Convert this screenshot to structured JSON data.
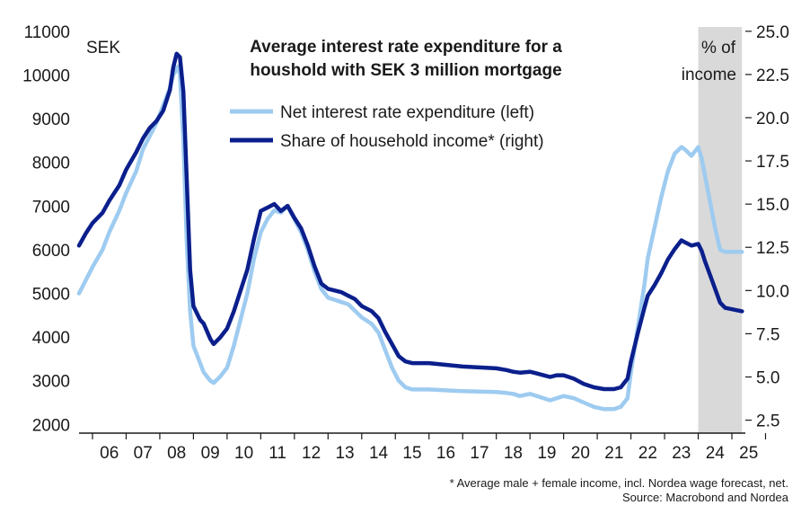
{
  "chart_data": {
    "type": "line",
    "title_lines": [
      "Average interest rate expenditure for a",
      "houshold with SEK 3 million mortgage"
    ],
    "left_unit": "SEK",
    "right_unit_lines": [
      "% of",
      "income"
    ],
    "x_ticks": [
      "06",
      "07",
      "08",
      "09",
      "10",
      "11",
      "12",
      "13",
      "14",
      "15",
      "16",
      "17",
      "18",
      "19",
      "20",
      "21",
      "22",
      "23",
      "24",
      "25"
    ],
    "x_range": [
      2005.6,
      2025.4
    ],
    "left_axis": {
      "range": [
        1800,
        11100
      ],
      "ticks": [
        "2000",
        "3000",
        "4000",
        "5000",
        "6000",
        "7000",
        "8000",
        "9000",
        "10000",
        "11000"
      ]
    },
    "right_axis": {
      "range": [
        1.75,
        25.25
      ],
      "ticks": [
        "2.5",
        "5.0",
        "7.5",
        "10.0",
        "12.5",
        "15.0",
        "17.5",
        "20.0",
        "22.5",
        "25.0"
      ]
    },
    "forecast_shade": {
      "from": 2024.0,
      "to": 2025.3,
      "color": "#d9d9d9"
    },
    "grid": false,
    "legend_position": "top-center",
    "series": [
      {
        "name": "Net interest rate expenditure (left)",
        "axis": "left",
        "color": "#9ecbf0",
        "points": [
          [
            2005.6,
            5000
          ],
          [
            2005.8,
            5300
          ],
          [
            2006.0,
            5600
          ],
          [
            2006.3,
            6000
          ],
          [
            2006.5,
            6400
          ],
          [
            2006.8,
            6900
          ],
          [
            2007.0,
            7300
          ],
          [
            2007.3,
            7800
          ],
          [
            2007.5,
            8300
          ],
          [
            2007.7,
            8600
          ],
          [
            2007.9,
            8900
          ],
          [
            2008.1,
            9300
          ],
          [
            2008.3,
            9700
          ],
          [
            2008.4,
            10000
          ],
          [
            2008.55,
            10200
          ],
          [
            2008.6,
            10000
          ],
          [
            2008.7,
            8500
          ],
          [
            2008.8,
            6200
          ],
          [
            2008.9,
            4600
          ],
          [
            2009.0,
            3800
          ],
          [
            2009.2,
            3400
          ],
          [
            2009.3,
            3200
          ],
          [
            2009.5,
            3000
          ],
          [
            2009.6,
            2950
          ],
          [
            2009.8,
            3100
          ],
          [
            2010.0,
            3300
          ],
          [
            2010.2,
            3800
          ],
          [
            2010.4,
            4400
          ],
          [
            2010.6,
            5000
          ],
          [
            2010.8,
            5800
          ],
          [
            2011.0,
            6400
          ],
          [
            2011.2,
            6700
          ],
          [
            2011.4,
            6900
          ],
          [
            2011.6,
            6850
          ],
          [
            2011.8,
            7000
          ],
          [
            2012.0,
            6700
          ],
          [
            2012.2,
            6400
          ],
          [
            2012.4,
            6000
          ],
          [
            2012.6,
            5500
          ],
          [
            2012.8,
            5100
          ],
          [
            2013.0,
            4900
          ],
          [
            2013.2,
            4850
          ],
          [
            2013.4,
            4800
          ],
          [
            2013.6,
            4750
          ],
          [
            2013.8,
            4600
          ],
          [
            2014.0,
            4450
          ],
          [
            2014.3,
            4300
          ],
          [
            2014.5,
            4100
          ],
          [
            2014.7,
            3700
          ],
          [
            2014.9,
            3300
          ],
          [
            2015.1,
            3000
          ],
          [
            2015.3,
            2850
          ],
          [
            2015.5,
            2800
          ],
          [
            2016.0,
            2800
          ],
          [
            2016.5,
            2780
          ],
          [
            2017.0,
            2760
          ],
          [
            2017.5,
            2750
          ],
          [
            2018.0,
            2740
          ],
          [
            2018.3,
            2720
          ],
          [
            2018.5,
            2700
          ],
          [
            2018.7,
            2650
          ],
          [
            2019.0,
            2700
          ],
          [
            2019.2,
            2650
          ],
          [
            2019.4,
            2600
          ],
          [
            2019.6,
            2550
          ],
          [
            2019.8,
            2600
          ],
          [
            2020.0,
            2650
          ],
          [
            2020.3,
            2600
          ],
          [
            2020.6,
            2500
          ],
          [
            2020.9,
            2400
          ],
          [
            2021.2,
            2350
          ],
          [
            2021.5,
            2350
          ],
          [
            2021.7,
            2400
          ],
          [
            2021.9,
            2600
          ],
          [
            2022.0,
            3200
          ],
          [
            2022.2,
            4200
          ],
          [
            2022.4,
            5200
          ],
          [
            2022.5,
            5800
          ],
          [
            2022.7,
            6500
          ],
          [
            2022.9,
            7200
          ],
          [
            2023.1,
            7800
          ],
          [
            2023.3,
            8200
          ],
          [
            2023.5,
            8350
          ],
          [
            2023.6,
            8300
          ],
          [
            2023.8,
            8150
          ],
          [
            2024.0,
            8350
          ],
          [
            2024.1,
            8100
          ],
          [
            2024.2,
            7700
          ],
          [
            2024.35,
            7100
          ],
          [
            2024.5,
            6500
          ],
          [
            2024.65,
            6000
          ],
          [
            2024.8,
            5950
          ],
          [
            2025.3,
            5950
          ]
        ]
      },
      {
        "name": "Share of household income* (right)",
        "axis": "right",
        "color": "#0b1f8c",
        "points": [
          [
            2005.6,
            12.6
          ],
          [
            2005.8,
            13.3
          ],
          [
            2006.0,
            13.9
          ],
          [
            2006.3,
            14.5
          ],
          [
            2006.5,
            15.2
          ],
          [
            2006.8,
            16.1
          ],
          [
            2007.0,
            17.0
          ],
          [
            2007.3,
            18.0
          ],
          [
            2007.5,
            18.8
          ],
          [
            2007.7,
            19.4
          ],
          [
            2007.9,
            19.8
          ],
          [
            2008.1,
            20.4
          ],
          [
            2008.3,
            21.6
          ],
          [
            2008.4,
            22.9
          ],
          [
            2008.5,
            23.7
          ],
          [
            2008.6,
            23.5
          ],
          [
            2008.7,
            21.5
          ],
          [
            2008.8,
            16.5
          ],
          [
            2008.9,
            11.2
          ],
          [
            2009.0,
            9.1
          ],
          [
            2009.2,
            8.3
          ],
          [
            2009.3,
            8.1
          ],
          [
            2009.5,
            7.2
          ],
          [
            2009.6,
            6.9
          ],
          [
            2009.8,
            7.3
          ],
          [
            2010.0,
            7.8
          ],
          [
            2010.2,
            8.8
          ],
          [
            2010.4,
            10.0
          ],
          [
            2010.6,
            11.2
          ],
          [
            2010.8,
            13.0
          ],
          [
            2011.0,
            14.6
          ],
          [
            2011.2,
            14.8
          ],
          [
            2011.4,
            15.0
          ],
          [
            2011.6,
            14.6
          ],
          [
            2011.8,
            14.9
          ],
          [
            2012.0,
            14.2
          ],
          [
            2012.2,
            13.6
          ],
          [
            2012.4,
            12.6
          ],
          [
            2012.6,
            11.4
          ],
          [
            2012.8,
            10.4
          ],
          [
            2013.0,
            10.1
          ],
          [
            2013.2,
            10.0
          ],
          [
            2013.4,
            9.9
          ],
          [
            2013.6,
            9.7
          ],
          [
            2013.8,
            9.5
          ],
          [
            2014.0,
            9.1
          ],
          [
            2014.3,
            8.8
          ],
          [
            2014.5,
            8.4
          ],
          [
            2014.7,
            7.6
          ],
          [
            2014.9,
            6.9
          ],
          [
            2015.1,
            6.2
          ],
          [
            2015.3,
            5.9
          ],
          [
            2015.5,
            5.8
          ],
          [
            2016.0,
            5.8
          ],
          [
            2016.5,
            5.7
          ],
          [
            2017.0,
            5.6
          ],
          [
            2017.5,
            5.55
          ],
          [
            2018.0,
            5.5
          ],
          [
            2018.3,
            5.4
          ],
          [
            2018.5,
            5.3
          ],
          [
            2018.7,
            5.25
          ],
          [
            2019.0,
            5.3
          ],
          [
            2019.2,
            5.2
          ],
          [
            2019.4,
            5.1
          ],
          [
            2019.6,
            5.0
          ],
          [
            2019.8,
            5.1
          ],
          [
            2020.0,
            5.1
          ],
          [
            2020.3,
            4.9
          ],
          [
            2020.6,
            4.6
          ],
          [
            2020.9,
            4.4
          ],
          [
            2021.2,
            4.3
          ],
          [
            2021.5,
            4.3
          ],
          [
            2021.7,
            4.4
          ],
          [
            2021.9,
            4.9
          ],
          [
            2022.0,
            5.9
          ],
          [
            2022.2,
            7.5
          ],
          [
            2022.4,
            9.0
          ],
          [
            2022.5,
            9.7
          ],
          [
            2022.7,
            10.3
          ],
          [
            2022.9,
            11.0
          ],
          [
            2023.1,
            11.8
          ],
          [
            2023.3,
            12.4
          ],
          [
            2023.5,
            12.9
          ],
          [
            2023.6,
            12.8
          ],
          [
            2023.8,
            12.6
          ],
          [
            2024.0,
            12.7
          ],
          [
            2024.1,
            12.3
          ],
          [
            2024.2,
            11.7
          ],
          [
            2024.35,
            10.9
          ],
          [
            2024.5,
            10.1
          ],
          [
            2024.65,
            9.3
          ],
          [
            2024.8,
            9.0
          ],
          [
            2025.3,
            8.8
          ]
        ]
      }
    ],
    "footnotes": [
      "* Average male + female income, incl. Nordea wage forecast, net.",
      "Source: Macrobond and Nordea"
    ]
  }
}
